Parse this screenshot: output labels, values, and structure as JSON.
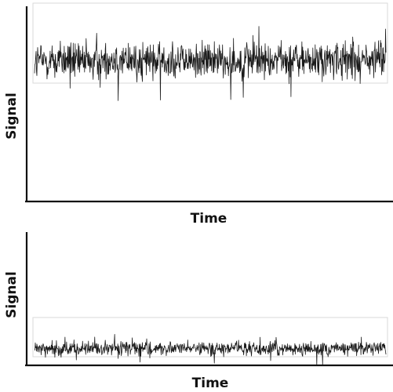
{
  "chart_data": [
    {
      "type": "line",
      "panel": "top",
      "xlabel": "Time",
      "ylabel": "Signal",
      "grid": false,
      "legend": "none",
      "line_color": "#1a1a1a",
      "box_color": "#d8d8d8",
      "series": [
        {
          "baseline": 0.72,
          "noise_amplitude": 0.25,
          "samples": 900
        }
      ]
    },
    {
      "type": "line",
      "panel": "bottom",
      "xlabel": "Time",
      "ylabel": "Signal",
      "grid": false,
      "legend": "none",
      "line_color": "#1a1a1a",
      "box_color": "#d8d8d8",
      "series": [
        {
          "baseline": 0.12,
          "noise_amplitude": 0.13,
          "samples": 900
        }
      ]
    }
  ]
}
